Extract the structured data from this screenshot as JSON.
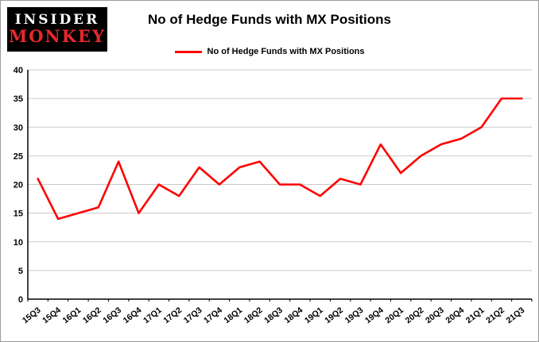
{
  "logo": {
    "line1": "INSIDER",
    "line2": "MONKEY"
  },
  "title": "No of Hedge Funds with MX Positions",
  "legend": {
    "label": "No of Hedge Funds with MX Positions",
    "color": "#ff0000"
  },
  "chart_data": {
    "type": "line",
    "title": "No of Hedge Funds with MX Positions",
    "categories": [
      "15Q3",
      "15Q4",
      "16Q1",
      "16Q2",
      "16Q3",
      "16Q4",
      "17Q1",
      "17Q2",
      "17Q3",
      "17Q4",
      "18Q1",
      "18Q2",
      "18Q3",
      "18Q4",
      "19Q1",
      "19Q2",
      "19Q3",
      "19Q4",
      "20Q1",
      "20Q2",
      "20Q3",
      "20Q4",
      "21Q1",
      "21Q2",
      "21Q3"
    ],
    "values": [
      21,
      14,
      15,
      16,
      24,
      15,
      20,
      18,
      23,
      20,
      23,
      24,
      20,
      20,
      18,
      21,
      20,
      27,
      22,
      25,
      27,
      28,
      30,
      35,
      35
    ],
    "series_name": "No of Hedge Funds with MX Positions",
    "xlabel": "",
    "ylabel": "",
    "ylim": [
      0,
      40
    ],
    "yticks": [
      0,
      5,
      10,
      15,
      20,
      25,
      30,
      35,
      40
    ],
    "grid": true,
    "grid_color": "#c9c9c9",
    "line_color": "#ff0000",
    "axis_color": "#000000",
    "legend_position": "top-center"
  }
}
